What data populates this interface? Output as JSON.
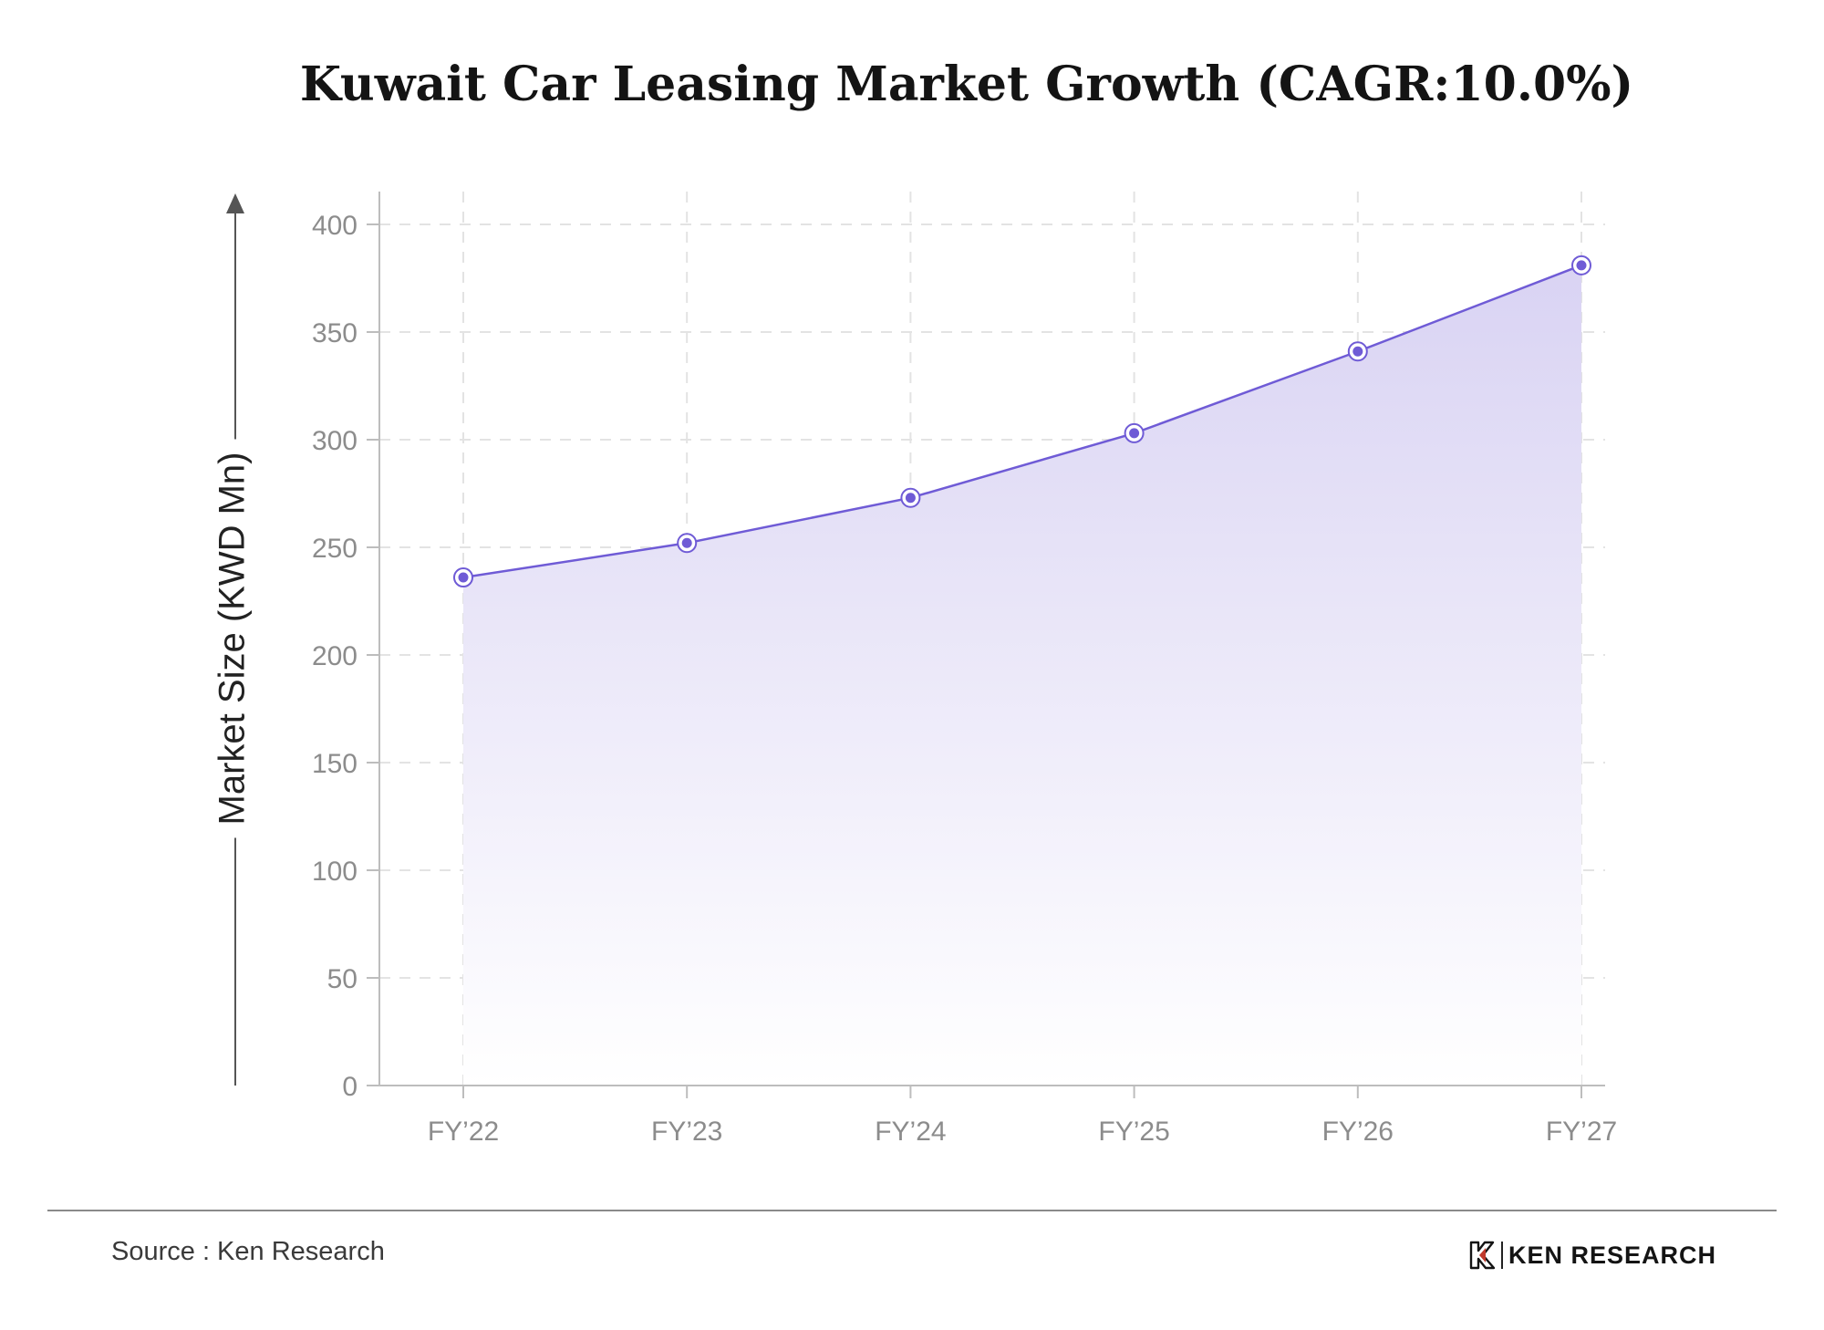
{
  "title": "Kuwait Car Leasing Market Growth (CAGR:10.0%)",
  "source": "Source : Ken Research",
  "brand": {
    "name": "KEN RESEARCH",
    "logo_icon": "ken-research-logo"
  },
  "colors": {
    "line": "#6f5bd6",
    "fill_top": "#d9d3f3",
    "fill_bottom": "#ffffff",
    "grid": "#e3e3e3",
    "axis": "#bdbdbd",
    "tick_text": "#8c8c8c"
  },
  "chart_data": {
    "type": "area",
    "title": "Kuwait Car Leasing Market Growth (CAGR:10.0%)",
    "xlabel": "",
    "ylabel": "Market Size (KWD Mn)",
    "categories": [
      "FY’22",
      "FY’23",
      "FY’24",
      "FY’25",
      "FY’26",
      "FY’27"
    ],
    "series": [
      {
        "values": [
          236,
          252,
          273,
          303,
          341,
          381
        ]
      }
    ],
    "ylim": [
      0,
      400
    ],
    "yticks": [
      0,
      50,
      100,
      150,
      200,
      250,
      300,
      350,
      400
    ],
    "grid": true,
    "markers": true
  }
}
